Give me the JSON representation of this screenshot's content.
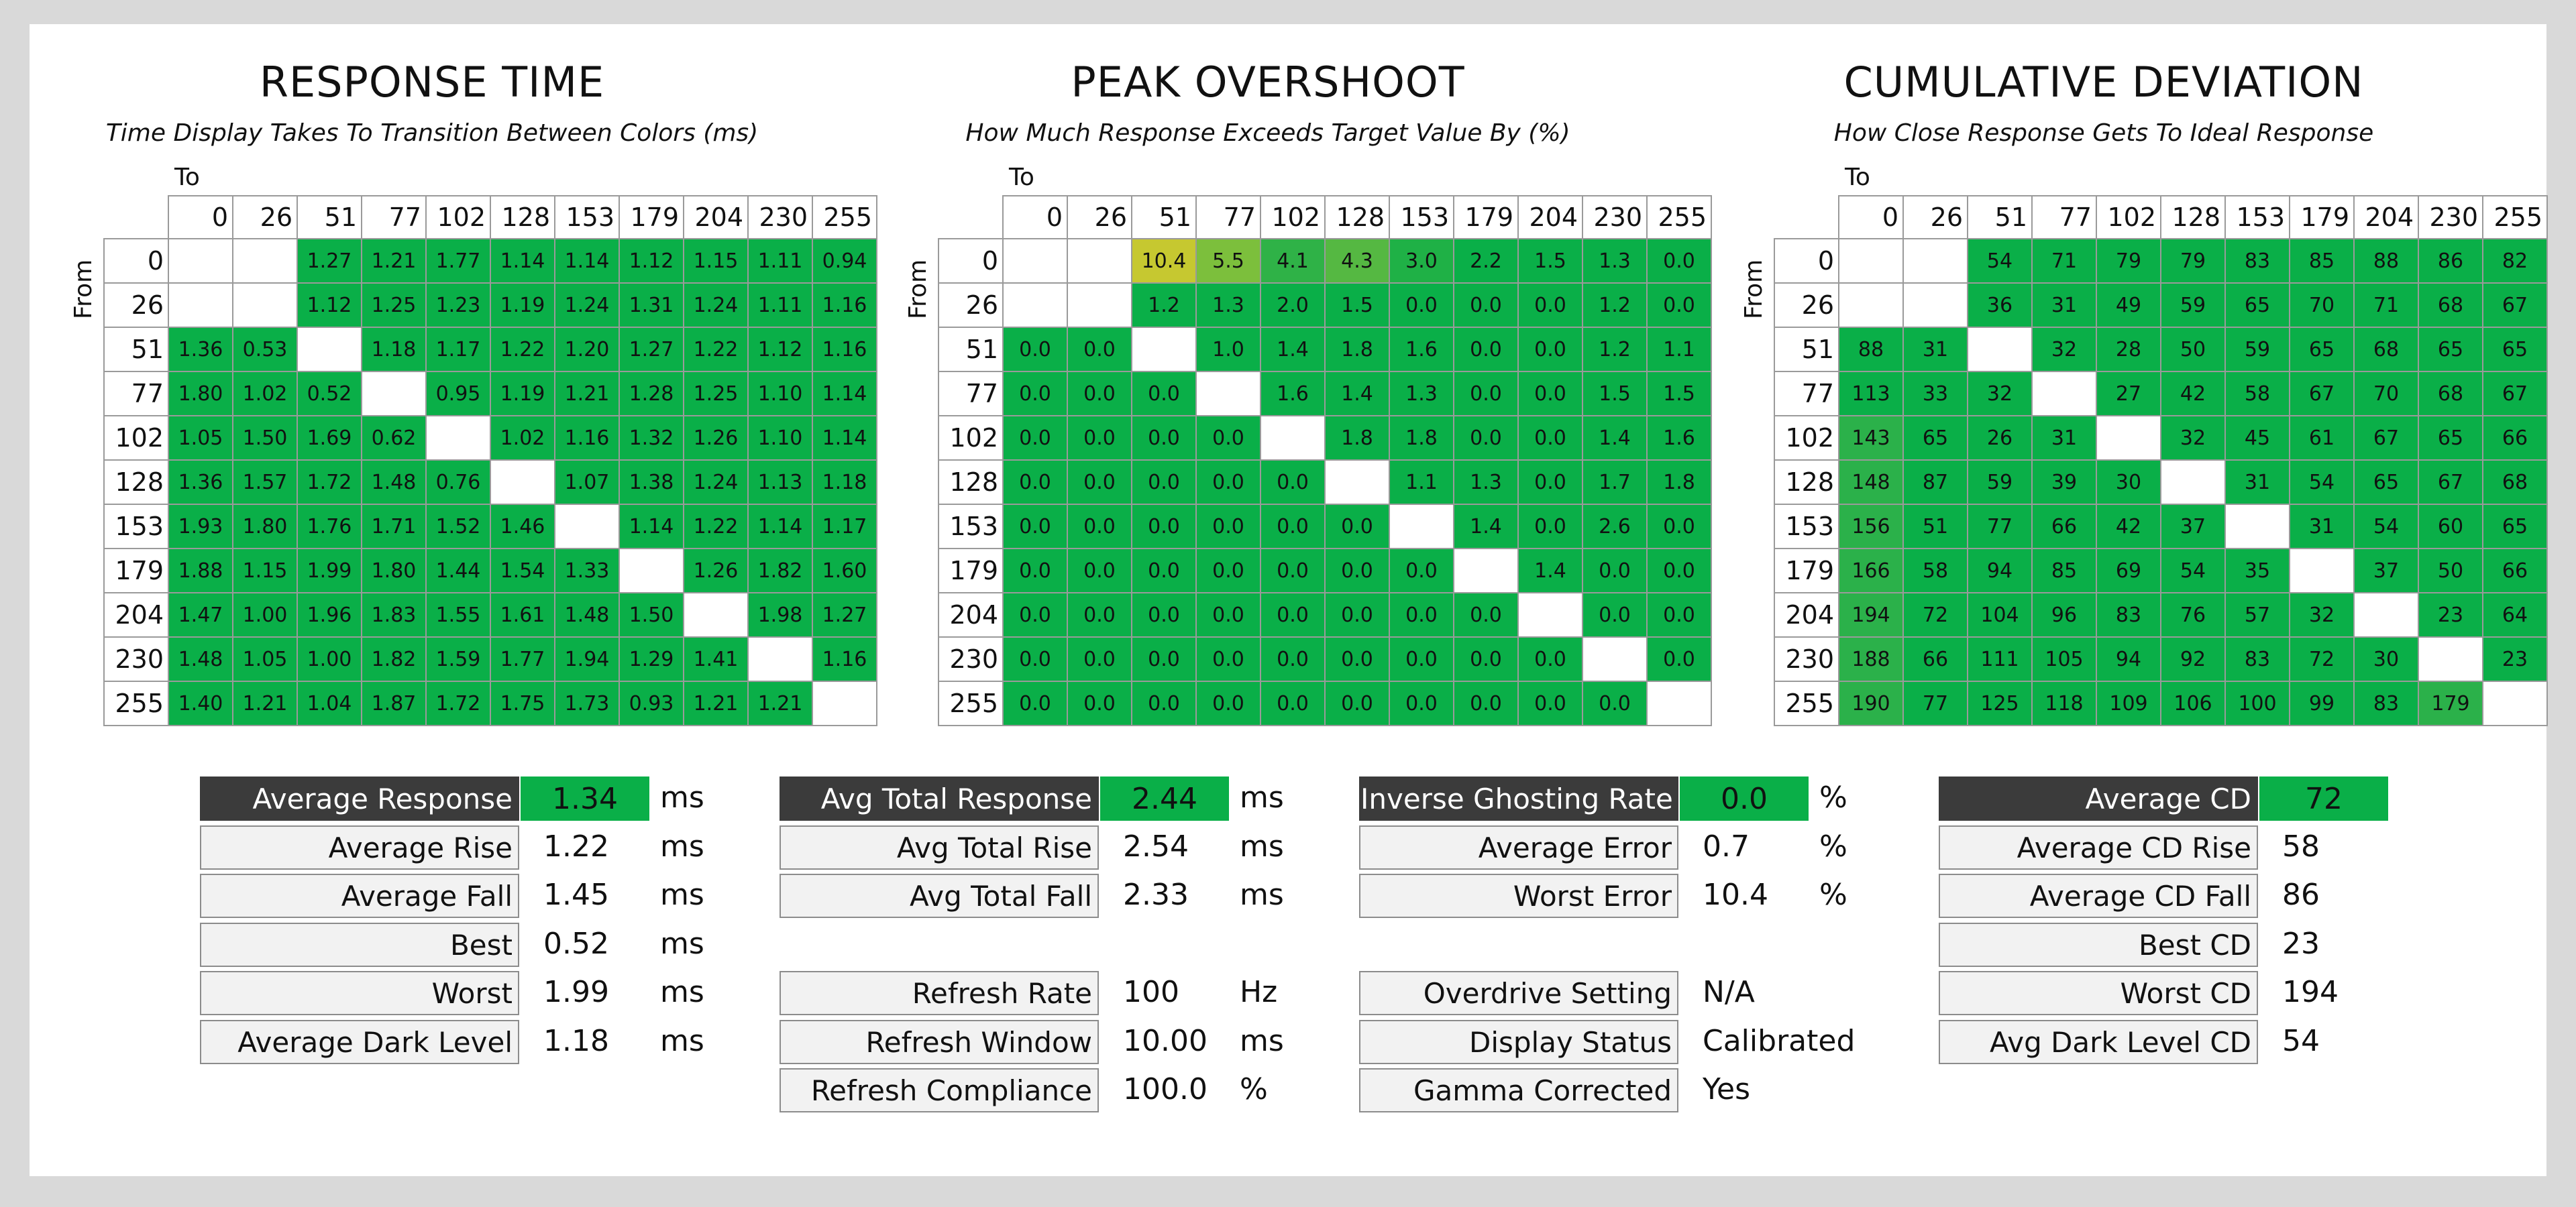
{
  "chart_data": [
    {
      "type": "heatmap",
      "title": "RESPONSE TIME",
      "subtitle": "Time Display Takes To Transition Between Colors (ms)",
      "xlabel": "To",
      "ylabel": "From",
      "categories": [
        "0",
        "26",
        "51",
        "77",
        "102",
        "128",
        "153",
        "179",
        "204",
        "230",
        "255"
      ],
      "cell_color": "#0aaf48",
      "values": [
        [
          null,
          null,
          "1.27",
          "1.21",
          "1.77",
          "1.14",
          "1.14",
          "1.12",
          "1.15",
          "1.11",
          "0.94"
        ],
        [
          null,
          null,
          "1.12",
          "1.25",
          "1.23",
          "1.19",
          "1.24",
          "1.31",
          "1.24",
          "1.11",
          "1.16"
        ],
        [
          "1.36",
          "0.53",
          null,
          "1.18",
          "1.17",
          "1.22",
          "1.20",
          "1.27",
          "1.22",
          "1.12",
          "1.16"
        ],
        [
          "1.80",
          "1.02",
          "0.52",
          null,
          "0.95",
          "1.19",
          "1.21",
          "1.28",
          "1.25",
          "1.10",
          "1.14"
        ],
        [
          "1.05",
          "1.50",
          "1.69",
          "0.62",
          null,
          "1.02",
          "1.16",
          "1.32",
          "1.26",
          "1.10",
          "1.14"
        ],
        [
          "1.36",
          "1.57",
          "1.72",
          "1.48",
          "0.76",
          null,
          "1.07",
          "1.38",
          "1.24",
          "1.13",
          "1.18"
        ],
        [
          "1.93",
          "1.80",
          "1.76",
          "1.71",
          "1.52",
          "1.46",
          null,
          "1.14",
          "1.22",
          "1.14",
          "1.17"
        ],
        [
          "1.88",
          "1.15",
          "1.99",
          "1.80",
          "1.44",
          "1.54",
          "1.33",
          null,
          "1.26",
          "1.82",
          "1.60"
        ],
        [
          "1.47",
          "1.00",
          "1.96",
          "1.83",
          "1.55",
          "1.61",
          "1.48",
          "1.50",
          null,
          "1.98",
          "1.27"
        ],
        [
          "1.48",
          "1.05",
          "1.00",
          "1.82",
          "1.59",
          "1.77",
          "1.94",
          "1.29",
          "1.41",
          null,
          "1.16"
        ],
        [
          "1.40",
          "1.21",
          "1.04",
          "1.87",
          "1.72",
          "1.75",
          "1.73",
          "0.93",
          "1.21",
          "1.21",
          null
        ]
      ]
    },
    {
      "type": "heatmap",
      "title": "PEAK OVERSHOOT",
      "subtitle": "How Much Response Exceeds Target Value By (%)",
      "xlabel": "To",
      "ylabel": "From",
      "categories": [
        "0",
        "26",
        "51",
        "77",
        "102",
        "128",
        "153",
        "179",
        "204",
        "230",
        "255"
      ],
      "cell_color": "#0aaf48",
      "special_colors": {
        "0-2": "#c6c830",
        "0-3": "#7cbf3c",
        "0-4": "#2fb247",
        "0-5": "#55b842",
        "0-6": "#1fb146"
      },
      "values": [
        [
          null,
          null,
          "10.4",
          "5.5",
          "4.1",
          "4.3",
          "3.0",
          "2.2",
          "1.5",
          "1.3",
          "0.0"
        ],
        [
          null,
          null,
          "1.2",
          "1.3",
          "2.0",
          "1.5",
          "0.0",
          "0.0",
          "0.0",
          "1.2",
          "0.0"
        ],
        [
          "0.0",
          "0.0",
          null,
          "1.0",
          "1.4",
          "1.8",
          "1.6",
          "0.0",
          "0.0",
          "1.2",
          "1.1"
        ],
        [
          "0.0",
          "0.0",
          "0.0",
          null,
          "1.6",
          "1.4",
          "1.3",
          "0.0",
          "0.0",
          "1.5",
          "1.5"
        ],
        [
          "0.0",
          "0.0",
          "0.0",
          "0.0",
          null,
          "1.8",
          "1.8",
          "0.0",
          "0.0",
          "1.4",
          "1.6"
        ],
        [
          "0.0",
          "0.0",
          "0.0",
          "0.0",
          "0.0",
          null,
          "1.1",
          "1.3",
          "0.0",
          "1.7",
          "1.8"
        ],
        [
          "0.0",
          "0.0",
          "0.0",
          "0.0",
          "0.0",
          "0.0",
          null,
          "1.4",
          "0.0",
          "2.6",
          "0.0"
        ],
        [
          "0.0",
          "0.0",
          "0.0",
          "0.0",
          "0.0",
          "0.0",
          "0.0",
          null,
          "1.4",
          "0.0",
          "0.0"
        ],
        [
          "0.0",
          "0.0",
          "0.0",
          "0.0",
          "0.0",
          "0.0",
          "0.0",
          "0.0",
          null,
          "0.0",
          "0.0"
        ],
        [
          "0.0",
          "0.0",
          "0.0",
          "0.0",
          "0.0",
          "0.0",
          "0.0",
          "0.0",
          "0.0",
          null,
          "0.0"
        ],
        [
          "0.0",
          "0.0",
          "0.0",
          "0.0",
          "0.0",
          "0.0",
          "0.0",
          "0.0",
          "0.0",
          "0.0",
          null
        ]
      ]
    },
    {
      "type": "heatmap",
      "title": "CUMULATIVE DEVIATION",
      "subtitle": "How Close Response Gets To Ideal Response",
      "xlabel": "To",
      "ylabel": "From",
      "categories": [
        "0",
        "26",
        "51",
        "77",
        "102",
        "128",
        "153",
        "179",
        "204",
        "230",
        "255"
      ],
      "cell_color": "#0aaf48",
      "special_colors": {
        "4-0": "#2bb14a",
        "5-0": "#2bb14a",
        "6-0": "#2bb14a",
        "7-0": "#2bb14a",
        "8-0": "#2bb14a",
        "9-0": "#2bb14a",
        "10-0": "#2bb14a",
        "10-9": "#2bb14a"
      },
      "values": [
        [
          null,
          null,
          "54",
          "71",
          "79",
          "79",
          "83",
          "85",
          "88",
          "86",
          "82"
        ],
        [
          null,
          null,
          "36",
          "31",
          "49",
          "59",
          "65",
          "70",
          "71",
          "68",
          "67"
        ],
        [
          "88",
          "31",
          null,
          "32",
          "28",
          "50",
          "59",
          "65",
          "68",
          "65",
          "65"
        ],
        [
          "113",
          "33",
          "32",
          null,
          "27",
          "42",
          "58",
          "67",
          "70",
          "68",
          "67"
        ],
        [
          "143",
          "65",
          "26",
          "31",
          null,
          "32",
          "45",
          "61",
          "67",
          "65",
          "66"
        ],
        [
          "148",
          "87",
          "59",
          "39",
          "30",
          null,
          "31",
          "54",
          "65",
          "67",
          "68"
        ],
        [
          "156",
          "51",
          "77",
          "66",
          "42",
          "37",
          null,
          "31",
          "54",
          "60",
          "65"
        ],
        [
          "166",
          "58",
          "94",
          "85",
          "69",
          "54",
          "35",
          null,
          "37",
          "50",
          "66"
        ],
        [
          "194",
          "72",
          "104",
          "96",
          "83",
          "76",
          "57",
          "32",
          null,
          "23",
          "64"
        ],
        [
          "188",
          "66",
          "111",
          "105",
          "94",
          "92",
          "83",
          "72",
          "30",
          null,
          "23"
        ],
        [
          "190",
          "77",
          "125",
          "118",
          "109",
          "106",
          "100",
          "99",
          "83",
          "179",
          null
        ]
      ]
    }
  ],
  "stats": [
    {
      "rows": [
        {
          "label": "Average Response",
          "value": "1.34",
          "unit": "ms",
          "highlight": true
        },
        {
          "label": "Average Rise",
          "value": "1.22",
          "unit": "ms"
        },
        {
          "label": "Average Fall",
          "value": "1.45",
          "unit": "ms"
        },
        {
          "label": "Best",
          "value": "0.52",
          "unit": "ms"
        },
        {
          "label": "Worst",
          "value": "1.99",
          "unit": "ms"
        },
        {
          "label": "Average Dark Level",
          "value": "1.18",
          "unit": "ms"
        }
      ]
    },
    {
      "rows": [
        {
          "label": "Avg Total Response",
          "value": "2.44",
          "unit": "ms",
          "highlight": true
        },
        {
          "label": "Avg Total Rise",
          "value": "2.54",
          "unit": "ms"
        },
        {
          "label": "Avg Total Fall",
          "value": "2.33",
          "unit": "ms"
        },
        null,
        {
          "label": "Refresh Rate",
          "value": "100",
          "unit": "Hz"
        },
        {
          "label": "Refresh Window",
          "value": "10.00",
          "unit": "ms"
        },
        {
          "label": "Refresh Compliance",
          "value": "100.0",
          "unit": "%"
        }
      ]
    },
    {
      "rows": [
        {
          "label": "Inverse Ghosting Rate",
          "value": "0.0",
          "unit": "%",
          "highlight": true
        },
        {
          "label": "Average Error",
          "value": "0.7",
          "unit": "%"
        },
        {
          "label": "Worst Error",
          "value": "10.4",
          "unit": "%"
        },
        null,
        {
          "label": "Overdrive Setting",
          "value": "N/A",
          "unit": ""
        },
        {
          "label": "Display Status",
          "value": "Calibrated",
          "unit": ""
        },
        {
          "label": "Gamma Corrected",
          "value": "Yes",
          "unit": ""
        }
      ]
    },
    {
      "rows": [
        {
          "label": "Average CD",
          "value": "72",
          "unit": "",
          "highlight": true
        },
        {
          "label": "Average CD Rise",
          "value": "58",
          "unit": ""
        },
        {
          "label": "Average CD Fall",
          "value": "86",
          "unit": ""
        },
        {
          "label": "Best CD",
          "value": "23",
          "unit": ""
        },
        {
          "label": "Worst CD",
          "value": "194",
          "unit": ""
        },
        {
          "label": "Avg Dark Level CD",
          "value": "54",
          "unit": ""
        }
      ]
    }
  ]
}
